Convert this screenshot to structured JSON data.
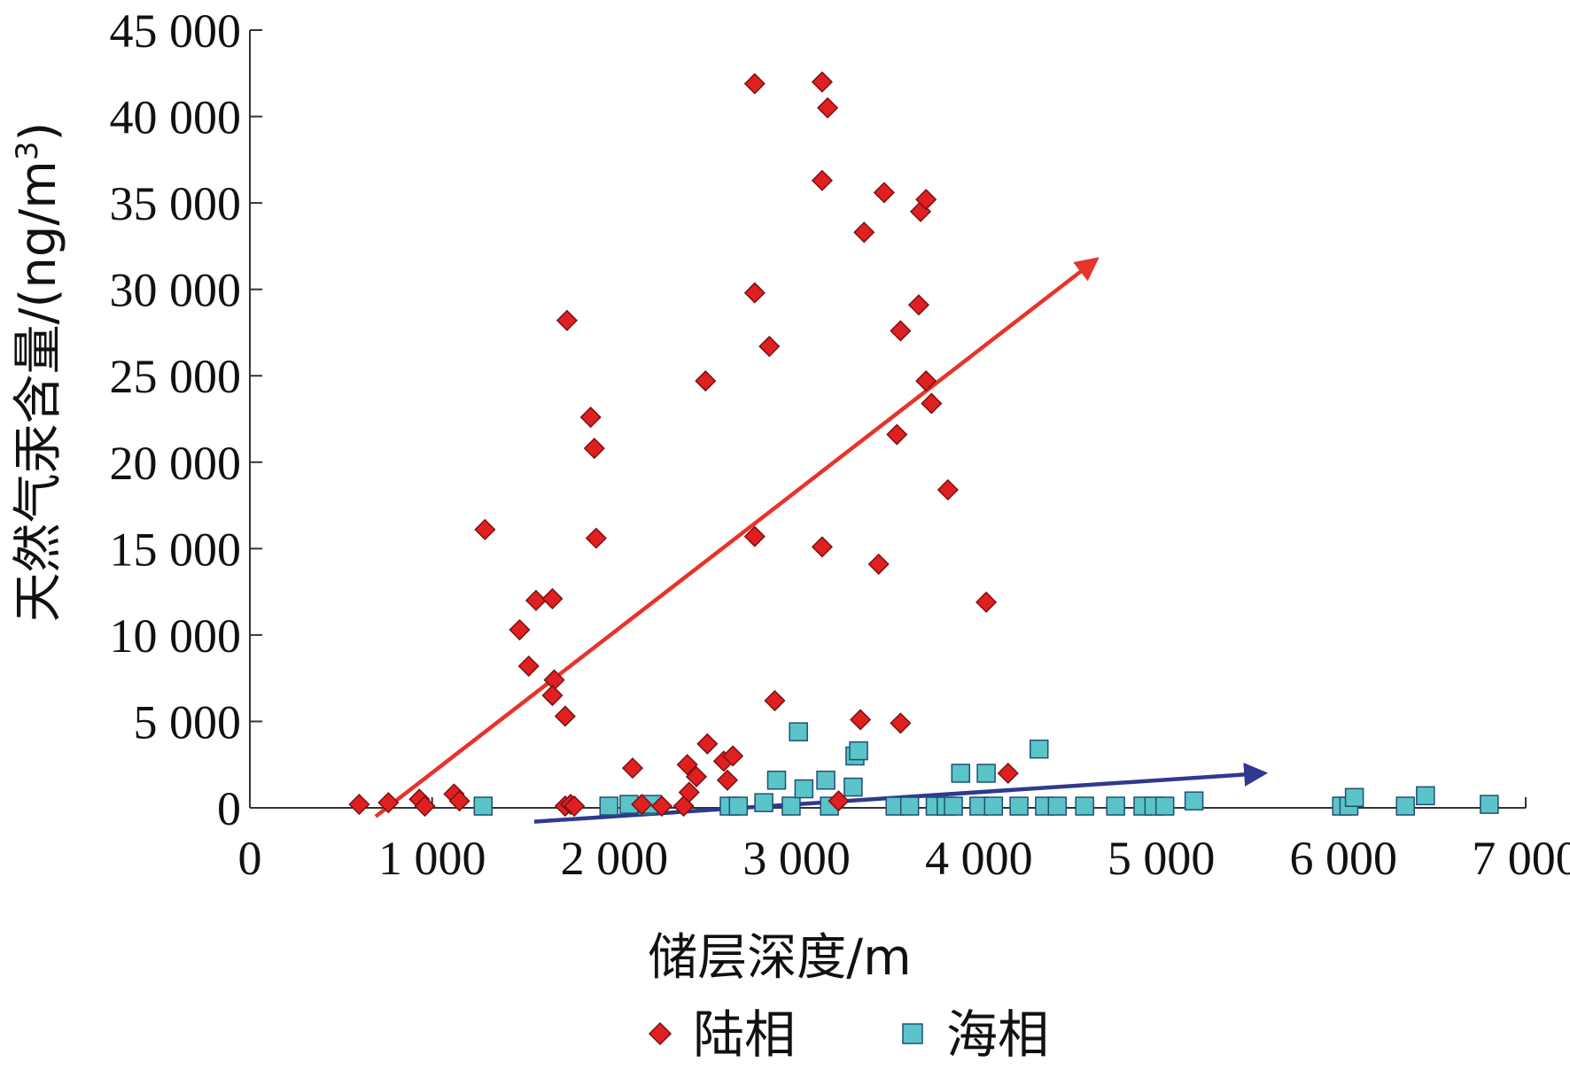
{
  "chart_data": {
    "type": "scatter",
    "xlabel": "储层深度/m",
    "ylabel_main": "天然气汞含量/(ng/m",
    "ylabel_sup": "3",
    "ylabel_end": ")",
    "xlim": [
      0,
      7000
    ],
    "ylim": [
      0,
      45000
    ],
    "x_ticks": [
      0,
      1000,
      2000,
      3000,
      4000,
      5000,
      6000,
      7000
    ],
    "x_tick_labels": [
      "0",
      "1 000",
      "2 000",
      "3 000",
      "4 000",
      "5 000",
      "6 000",
      "7 000"
    ],
    "y_ticks": [
      0,
      5000,
      10000,
      15000,
      20000,
      25000,
      30000,
      35000,
      40000,
      45000
    ],
    "y_tick_labels": [
      "0",
      "5 000",
      "10 000",
      "15 000",
      "20 000",
      "25 000",
      "30 000",
      "35 000",
      "40 000",
      "45 000"
    ],
    "grid": false,
    "legend_position": "bottom",
    "series": [
      {
        "name": "陆相",
        "marker": "diamond",
        "color": "#e02020",
        "points": [
          [
            600,
            200
          ],
          [
            760,
            300
          ],
          [
            930,
            500
          ],
          [
            960,
            100
          ],
          [
            1120,
            800
          ],
          [
            1150,
            400
          ],
          [
            1290,
            16100
          ],
          [
            1480,
            10300
          ],
          [
            1530,
            8200
          ],
          [
            1570,
            12000
          ],
          [
            1660,
            12100
          ],
          [
            1670,
            7400
          ],
          [
            1660,
            6500
          ],
          [
            1740,
            28200
          ],
          [
            1730,
            5300
          ],
          [
            1730,
            100
          ],
          [
            1760,
            200
          ],
          [
            1780,
            100
          ],
          [
            1870,
            22600
          ],
          [
            1890,
            20800
          ],
          [
            1900,
            15600
          ],
          [
            2100,
            2300
          ],
          [
            2150,
            200
          ],
          [
            2260,
            100
          ],
          [
            2380,
            100
          ],
          [
            2400,
            2500
          ],
          [
            2410,
            900
          ],
          [
            2450,
            1800
          ],
          [
            2500,
            24700
          ],
          [
            2510,
            3700
          ],
          [
            2600,
            2700
          ],
          [
            2620,
            1600
          ],
          [
            2650,
            3000
          ],
          [
            2770,
            41900
          ],
          [
            2770,
            29800
          ],
          [
            2770,
            15700
          ],
          [
            2850,
            26700
          ],
          [
            2880,
            6200
          ],
          [
            3140,
            42000
          ],
          [
            3170,
            40500
          ],
          [
            3140,
            36300
          ],
          [
            3140,
            15100
          ],
          [
            3230,
            400
          ],
          [
            3370,
            33300
          ],
          [
            3350,
            5100
          ],
          [
            3480,
            35600
          ],
          [
            3450,
            14100
          ],
          [
            3550,
            21600
          ],
          [
            3570,
            27600
          ],
          [
            3570,
            4900
          ],
          [
            3670,
            29100
          ],
          [
            3680,
            34500
          ],
          [
            3710,
            35200
          ],
          [
            3710,
            24700
          ],
          [
            3740,
            23400
          ],
          [
            3830,
            18400
          ],
          [
            4040,
            11900
          ],
          [
            4160,
            2000
          ]
        ]
      },
      {
        "name": "海相",
        "marker": "square",
        "color": "#5bc4c8",
        "points": [
          [
            1280,
            100
          ],
          [
            1970,
            100
          ],
          [
            2080,
            200
          ],
          [
            2180,
            100
          ],
          [
            2210,
            200
          ],
          [
            2630,
            100
          ],
          [
            2680,
            100
          ],
          [
            2820,
            300
          ],
          [
            2890,
            1600
          ],
          [
            2970,
            100
          ],
          [
            3010,
            4400
          ],
          [
            3040,
            1100
          ],
          [
            3160,
            1600
          ],
          [
            3180,
            100
          ],
          [
            3310,
            1200
          ],
          [
            3320,
            3000
          ],
          [
            3340,
            3300
          ],
          [
            3540,
            100
          ],
          [
            3620,
            100
          ],
          [
            3760,
            100
          ],
          [
            3820,
            100
          ],
          [
            3860,
            100
          ],
          [
            3900,
            2000
          ],
          [
            4000,
            100
          ],
          [
            4040,
            2000
          ],
          [
            4080,
            100
          ],
          [
            4220,
            100
          ],
          [
            4330,
            3400
          ],
          [
            4360,
            100
          ],
          [
            4430,
            100
          ],
          [
            4580,
            100
          ],
          [
            4750,
            100
          ],
          [
            4900,
            100
          ],
          [
            4960,
            100
          ],
          [
            5020,
            100
          ],
          [
            5180,
            400
          ],
          [
            5990,
            100
          ],
          [
            6030,
            100
          ],
          [
            6060,
            600
          ],
          [
            6340,
            100
          ],
          [
            6450,
            700
          ],
          [
            6800,
            200
          ]
        ]
      }
    ],
    "trend_lines": [
      {
        "series": "陆相",
        "color": "#e8332b",
        "from": [
          690,
          -500
        ],
        "to": [
          4640,
          31700
        ]
      },
      {
        "series": "海相",
        "color": "#2e3a8f",
        "from": [
          1560,
          -800
        ],
        "to": [
          5560,
          2000
        ]
      }
    ]
  }
}
